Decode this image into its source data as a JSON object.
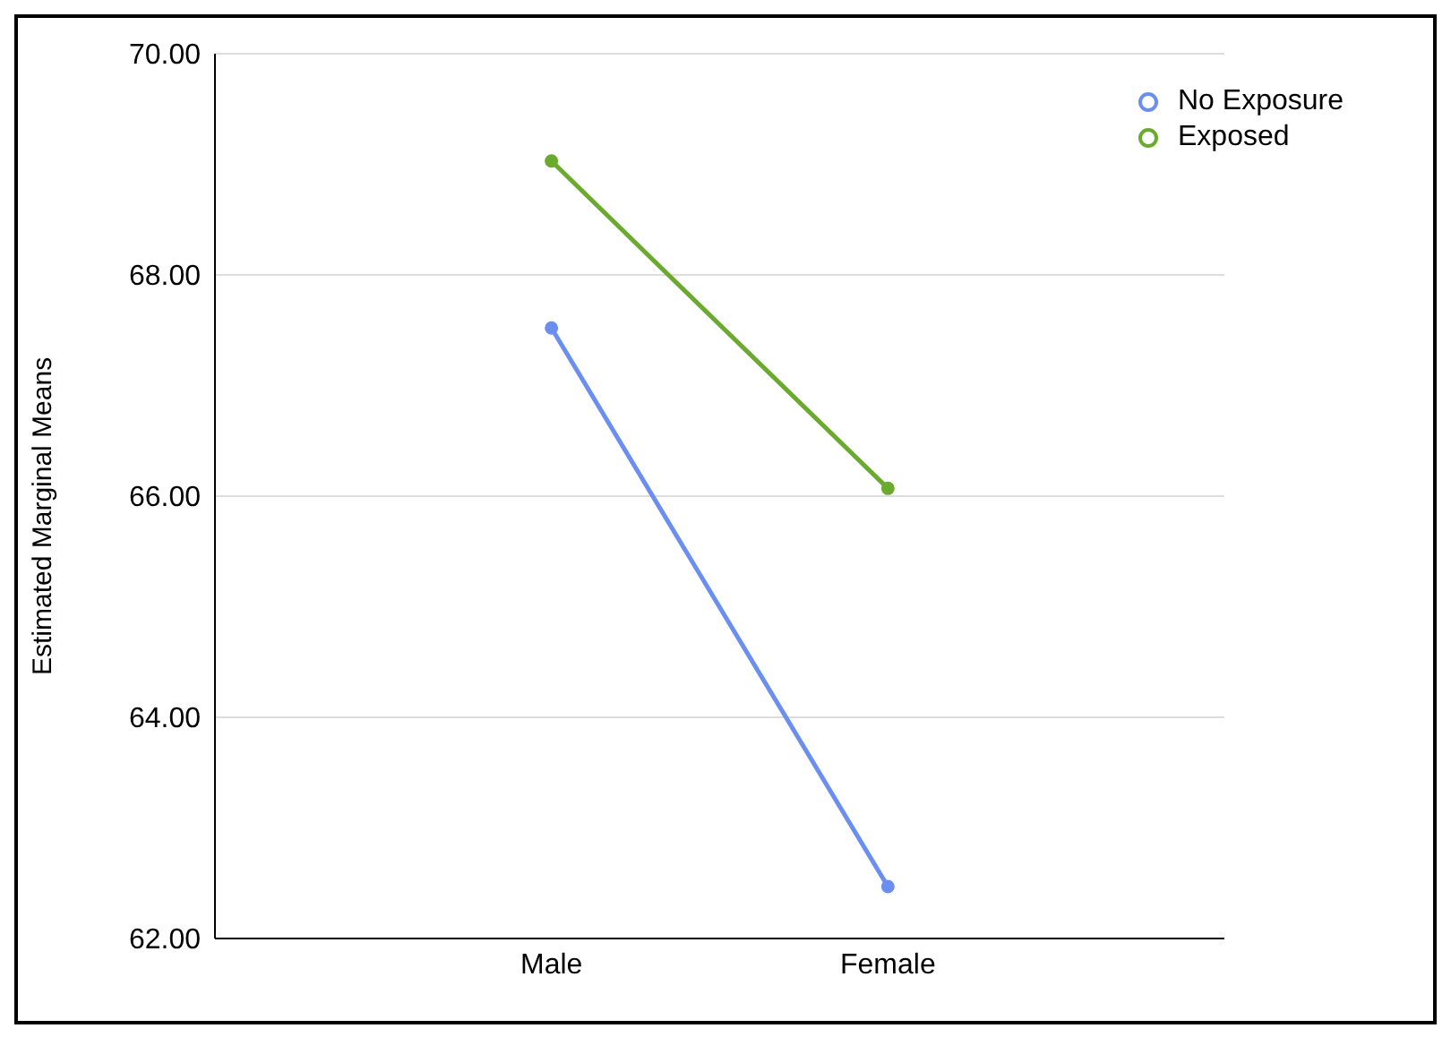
{
  "chart_data": {
    "type": "line",
    "ylabel": "Estimated Marginal Means",
    "categories": [
      "Male",
      "Female"
    ],
    "series": [
      {
        "name": "No Exposure",
        "color": "#6b8ff0",
        "values": [
          67.52,
          62.47
        ]
      },
      {
        "name": "Exposed",
        "color": "#6aaa2e",
        "values": [
          69.03,
          66.07
        ]
      }
    ],
    "ylim": [
      62,
      70
    ],
    "yticks": [
      {
        "value": 62,
        "label": "62.00"
      },
      {
        "value": 64,
        "label": "64.00"
      },
      {
        "value": 66,
        "label": "66.00"
      },
      {
        "value": 68,
        "label": "68.00"
      },
      {
        "value": 70,
        "label": "70.00"
      }
    ],
    "grid": "y",
    "legend": "top right",
    "marker": "circle",
    "line_style": "solid"
  }
}
